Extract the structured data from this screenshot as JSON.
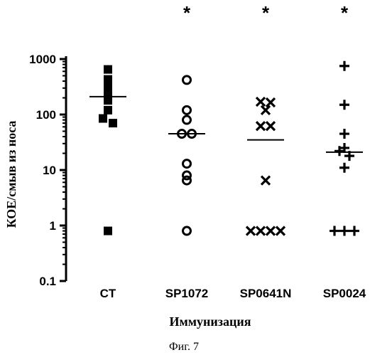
{
  "chart_data": {
    "type": "scatter",
    "ylabel": "КОЕ/смыв из носа",
    "xlabel": "Иммунизация",
    "caption": "Фиг. 7",
    "y_scale": "log",
    "ylim": [
      0.1,
      1000
    ],
    "y_ticks": [
      "0.1",
      "1",
      "10",
      "100",
      "1000"
    ],
    "categories": [
      "CT",
      "SP1072",
      "SP0641N",
      "SP0024"
    ],
    "significance": [
      "",
      "*",
      "*",
      "*"
    ],
    "series": [
      {
        "category": "CT",
        "marker": "square",
        "values": [
          650,
          430,
          330,
          250,
          180,
          120,
          85,
          70,
          0.8
        ],
        "median": 210
      },
      {
        "category": "SP1072",
        "marker": "circle",
        "values": [
          420,
          120,
          80,
          45,
          45,
          13,
          8,
          6.5,
          0.8
        ],
        "median": 45
      },
      {
        "category": "SP0641N",
        "marker": "cross",
        "values": [
          170,
          165,
          120,
          62,
          62,
          6.5,
          0.8,
          0.8,
          0.8,
          0.8
        ],
        "median": 35
      },
      {
        "category": "SP0024",
        "marker": "plus",
        "values": [
          750,
          150,
          45,
          25,
          22,
          18,
          11,
          0.8,
          0.8,
          0.8
        ],
        "median": 21
      }
    ]
  }
}
